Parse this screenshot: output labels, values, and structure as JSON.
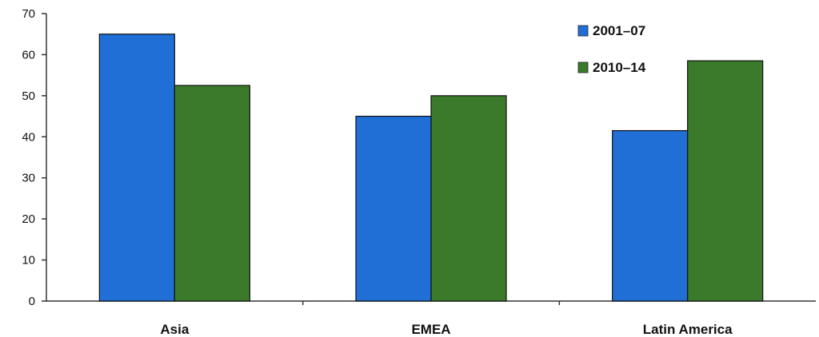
{
  "chart_data": {
    "type": "bar",
    "title": "",
    "xlabel": "",
    "ylabel": "",
    "categories": [
      "Asia",
      "EMEA",
      "Latin America"
    ],
    "series": [
      {
        "name": "2001–07",
        "color": "#1f6fd6",
        "values": [
          65,
          45,
          41.5
        ]
      },
      {
        "name": "2010–14",
        "color": "#3a7a2a",
        "values": [
          52.5,
          50,
          58.5
        ]
      }
    ],
    "ylim": [
      0,
      70
    ],
    "yticks": [
      0,
      10,
      20,
      30,
      40,
      50,
      60,
      70
    ],
    "grid": false,
    "legend_position": "top-right"
  }
}
